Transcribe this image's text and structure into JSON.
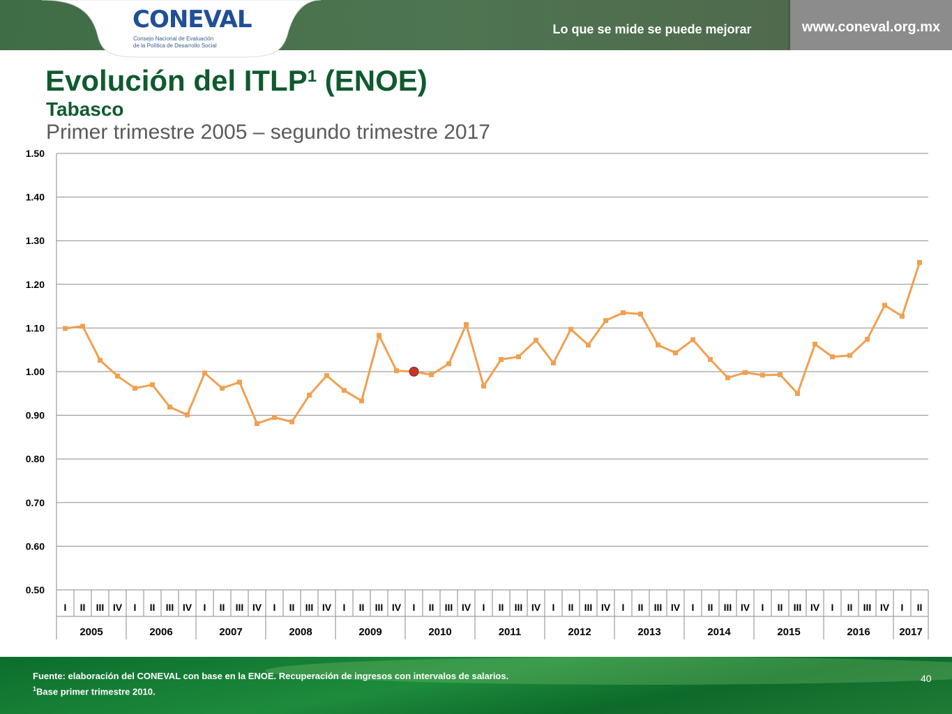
{
  "header": {
    "logo_text": "CONEVAL",
    "logo_subtitle_line1": "Consejo Nacional de Evaluación",
    "logo_subtitle_line2": "de la Política de Desarrollo Social",
    "slogan": "Lo que se mide se puede mejorar",
    "url": "www.coneval.org.mx"
  },
  "slide": {
    "title": "Evolución del ITLP",
    "title_sup": "1",
    "title_suffix": " (ENOE)",
    "subtitle": "Tabasco",
    "period": "Primer trimestre 2005 – segundo trimestre 2017"
  },
  "footer": {
    "source": "Fuente: elaboración del CONEVAL con base en la ENOE. Recuperación de ingresos con intervalos de salarios.",
    "base_note_sup": "1",
    "base_note": "Base primer trimestre 2010.",
    "page_number": "40"
  },
  "colors": {
    "line": "#f0a050",
    "highlight": "#c0392b",
    "title": "#0f5a2e"
  },
  "chart_data": {
    "type": "line",
    "yticks": [
      "1.50",
      "1.40",
      "1.30",
      "1.20",
      "1.10",
      "1.00",
      "0.90",
      "0.80",
      "0.70",
      "0.60",
      "0.50"
    ],
    "ylim": [
      0.5,
      1.5
    ],
    "grid": true,
    "quarters": [
      "I",
      "II",
      "III",
      "IV",
      "I",
      "II",
      "III",
      "IV",
      "I",
      "II",
      "III",
      "IV",
      "I",
      "II",
      "III",
      "IV",
      "I",
      "II",
      "III",
      "IV",
      "I",
      "II",
      "III",
      "IV",
      "I",
      "II",
      "III",
      "IV",
      "I",
      "II",
      "III",
      "IV",
      "I",
      "II",
      "III",
      "IV",
      "I",
      "II",
      "III",
      "IV",
      "I",
      "II",
      "III",
      "IV",
      "I",
      "II",
      "III",
      "IV",
      "I",
      "II"
    ],
    "years": [
      {
        "label": "2005",
        "quarters": 4
      },
      {
        "label": "2006",
        "quarters": 4
      },
      {
        "label": "2007",
        "quarters": 4
      },
      {
        "label": "2008",
        "quarters": 4
      },
      {
        "label": "2009",
        "quarters": 4
      },
      {
        "label": "2010",
        "quarters": 4
      },
      {
        "label": "2011",
        "quarters": 4
      },
      {
        "label": "2012",
        "quarters": 4
      },
      {
        "label": "2013",
        "quarters": 4
      },
      {
        "label": "2014",
        "quarters": 4
      },
      {
        "label": "2015",
        "quarters": 4
      },
      {
        "label": "2016",
        "quarters": 4
      },
      {
        "label": "2017",
        "quarters": 2
      }
    ],
    "series": [
      {
        "values": [
          1.099,
          1.104,
          1.026,
          0.99,
          0.962,
          0.97,
          0.919,
          0.901,
          0.997,
          0.962,
          0.976,
          0.881,
          0.895,
          0.885,
          0.946,
          0.991,
          0.957,
          0.933,
          1.083,
          1.002,
          1.0,
          0.993,
          1.018,
          1.108,
          0.967,
          1.028,
          1.034,
          1.072,
          1.02,
          1.097,
          1.061,
          1.117,
          1.135,
          1.132,
          1.061,
          1.043,
          1.073,
          1.028,
          0.986,
          0.998,
          0.992,
          0.993,
          0.95,
          1.063,
          1.034,
          1.037,
          1.074,
          1.152,
          1.127,
          1.25
        ]
      }
    ],
    "highlight_index": 20
  }
}
